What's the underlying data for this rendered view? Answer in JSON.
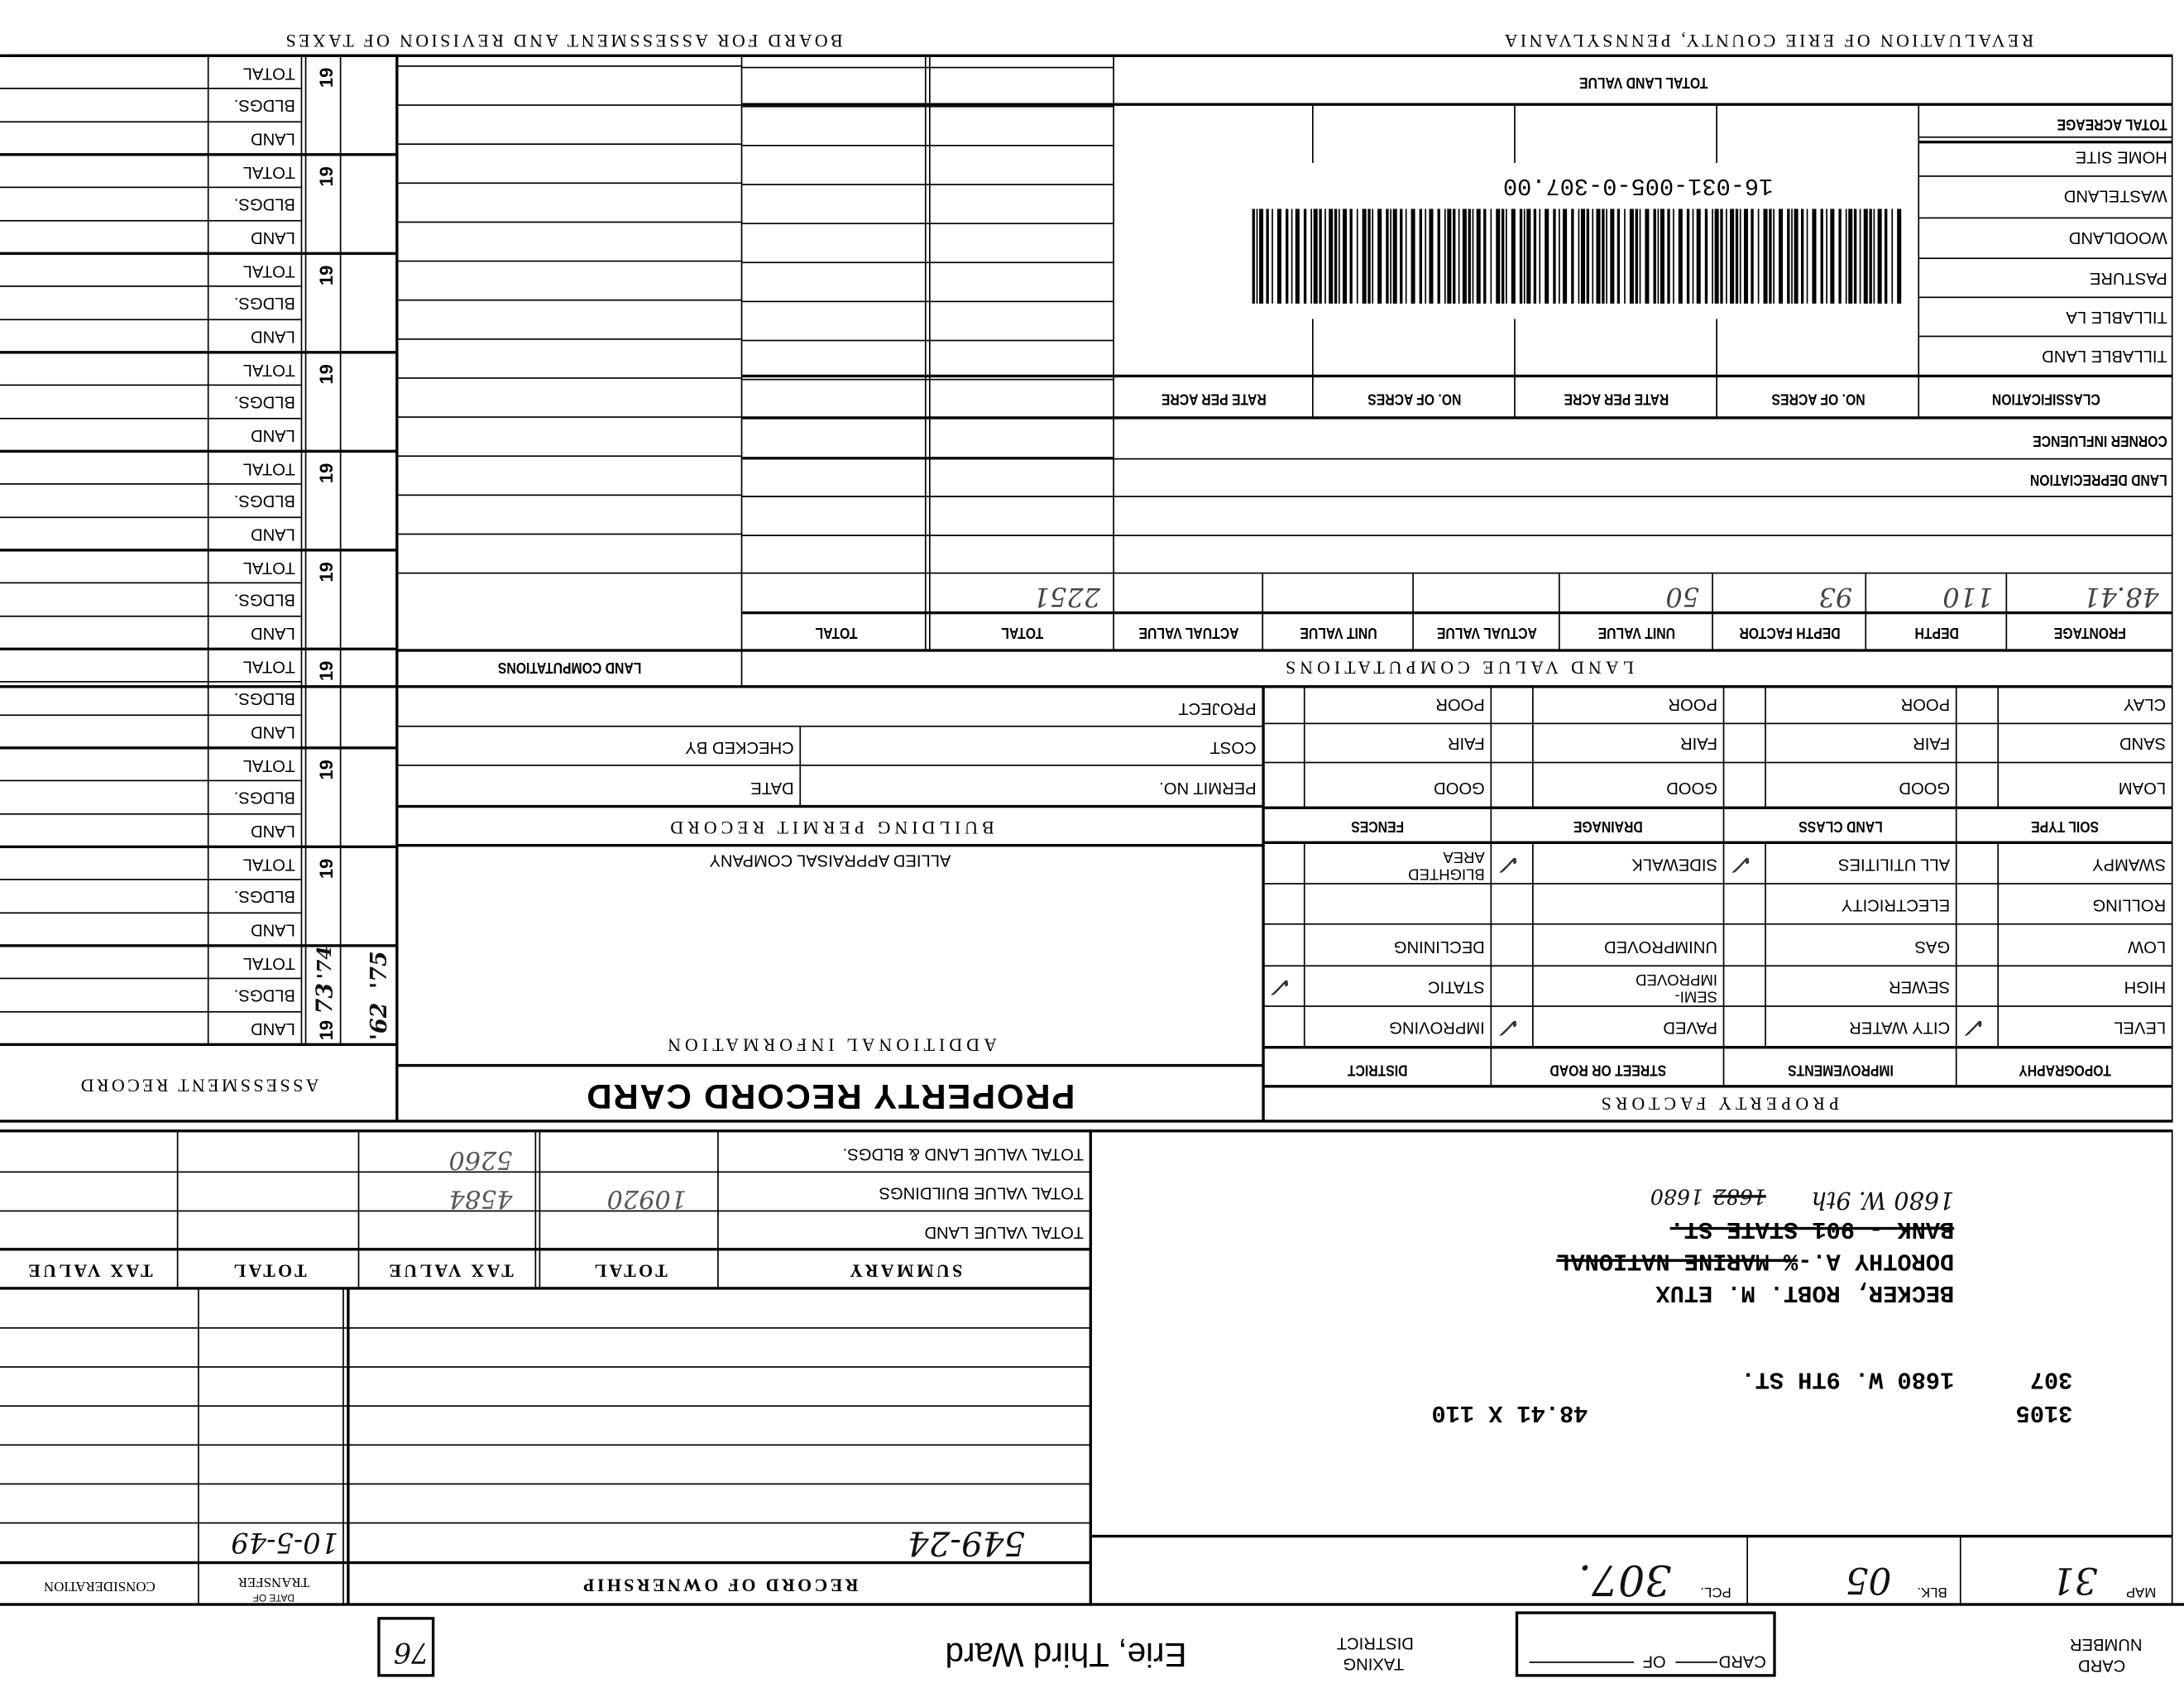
{
  "header": {
    "left_title": "REVALUATION OF ERIE COUNTY, PENNSYLVANIA",
    "right_title": "BOARD FOR ASSESSMENT AND REVISION OF TAXES"
  },
  "top_strip": {
    "card_number_label_1": "CARD",
    "card_number_label_2": "NUMBER",
    "card_box_card": "CARD",
    "card_box_of": "OF",
    "taxing_label_1": "TAXING",
    "taxing_label_2": "DISTRICT",
    "taxing_district": "Erie, Third Ward",
    "box_number": "76"
  },
  "parcel": {
    "map_label": "MAP",
    "map": "31",
    "blk_label": "BLK.",
    "blk": "05",
    "pcl_label": "PCL.",
    "pcl": "307."
  },
  "address": {
    "code": "3105",
    "dimensions": "48.41 X 110",
    "parcel_no": "307",
    "street": "1680 W. 9TH ST.",
    "owner_1": "BECKER, ROBT. M. ETUX",
    "owner_2a": "DOROTHY A.-",
    "owner_2b": "% MARINE NATIONAL",
    "owner_3": "BANK - 901 STATE ST.",
    "handwritten_1": "1680 W. 9th",
    "handwritten_2a": "1682",
    "handwritten_2b": "1680"
  },
  "ownership": {
    "title": "RECORD OF OWNERSHIP",
    "date_label_1": "DATE OF",
    "date_label_2": "TRANSFER",
    "consideration_label": "CONSIDERATION",
    "rows": [
      {
        "record": "549-24",
        "date": "10-5-49",
        "consideration": ""
      }
    ]
  },
  "summary": {
    "headers": [
      "SUMMARY",
      "TOTAL",
      "TAX VALUE",
      "TOTAL",
      "TAX VALUE"
    ],
    "rows": [
      {
        "label": "TOTAL VALUE LAND",
        "total": "",
        "tax_value": ""
      },
      {
        "label": "TOTAL VALUE BUILDINGS",
        "total": "10920",
        "tax_value": "4584"
      },
      {
        "label": "TOTAL VALUE LAND & BLDGS.",
        "total": "",
        "tax_value": "5260"
      }
    ]
  },
  "card_title": "PROPERTY RECORD CARD",
  "additional": {
    "title": "ADDITIONAL INFORMATION",
    "company": "ALLIED APPRAISAL COMPANY"
  },
  "permit": {
    "title": "BUILDING PERMIT RECORD",
    "permit_no": "PERMIT NO.",
    "date": "DATE",
    "cost": "COST",
    "checked_by": "CHECKED BY",
    "project": "PROJECT"
  },
  "property_factors": {
    "title": "PROPERTY FACTORS",
    "columns": [
      {
        "header": "TOPOGRAPHY",
        "items": [
          "LEVEL",
          "HIGH",
          "LOW",
          "ROLLING",
          "SWAMPY"
        ],
        "checked": [
          true,
          false,
          false,
          false,
          false
        ]
      },
      {
        "header": "IMPROVEMENTS",
        "items": [
          "CITY WATER",
          "SEWER",
          "GAS",
          "ELECTRICITY",
          "ALL UTILITIES"
        ],
        "checked": [
          false,
          false,
          false,
          false,
          true
        ]
      },
      {
        "header": "STREET OR ROAD",
        "items": [
          "PAVED",
          "SEMI-IMPROVED",
          "UNIMPROVED",
          "",
          "SIDEWALK"
        ],
        "checked": [
          true,
          false,
          false,
          false,
          true
        ]
      },
      {
        "header": "DISTRICT",
        "items": [
          "IMPROVING",
          "STATIC",
          "DECLINING",
          "",
          "BLIGHTED AREA"
        ],
        "checked": [
          false,
          true,
          false,
          false,
          false
        ]
      }
    ]
  },
  "soil": {
    "columns": [
      {
        "header": "SOIL TYPE",
        "items": [
          "LOAM",
          "SAND",
          "CLAY"
        ]
      },
      {
        "header": "LAND CLASS",
        "items": [
          "GOOD",
          "FAIR",
          "POOR"
        ]
      },
      {
        "header": "DRAINAGE",
        "items": [
          "GOOD",
          "FAIR",
          "POOR"
        ]
      },
      {
        "header": "FENCES",
        "items": [
          "GOOD",
          "FAIR",
          "POOR"
        ]
      }
    ]
  },
  "land_value": {
    "title": "LAND VALUE COMPUTATIONS",
    "side_title": "LAND COMPUTATIONS",
    "headers": [
      "FRONTAGE",
      "DEPTH",
      "DEPTH FACTOR",
      "UNIT VALUE",
      "ACTUAL VALUE",
      "UNIT VALUE",
      "ACTUAL VALUE",
      "TOTAL",
      "TOTAL"
    ],
    "row": [
      "48.41",
      "110",
      "93",
      "50",
      "",
      "",
      "",
      "2251",
      ""
    ],
    "land_depreciation": "LAND DEPRECIATION",
    "corner_influence": "CORNER INFLUENCE",
    "class_headers": [
      "CLASSIFICATION",
      "NO. OF ACRES",
      "RATE PER ACRE",
      "NO. OF ACRES",
      "RATE PER ACRE"
    ],
    "classes": [
      "TILLABLE LAND",
      "TILLABLE LA",
      "PASTURE",
      "WOODLAND",
      "WASTELAND",
      "HOME SITE"
    ],
    "total_acreage": "TOTAL ACREAGE",
    "total_land_value": "TOTAL LAND VALUE",
    "barcode_text": "16-031-005-0-307.00"
  },
  "assessment": {
    "title": "ASSESSMENT RECORD",
    "row_labels": [
      "LAND",
      "BLDGS.",
      "TOTAL"
    ],
    "year_prefix": "19",
    "block_count": 10,
    "first_year_suffix": "73",
    "first_year_note": "'74",
    "side_notes": [
      "'62",
      "'75"
    ]
  }
}
